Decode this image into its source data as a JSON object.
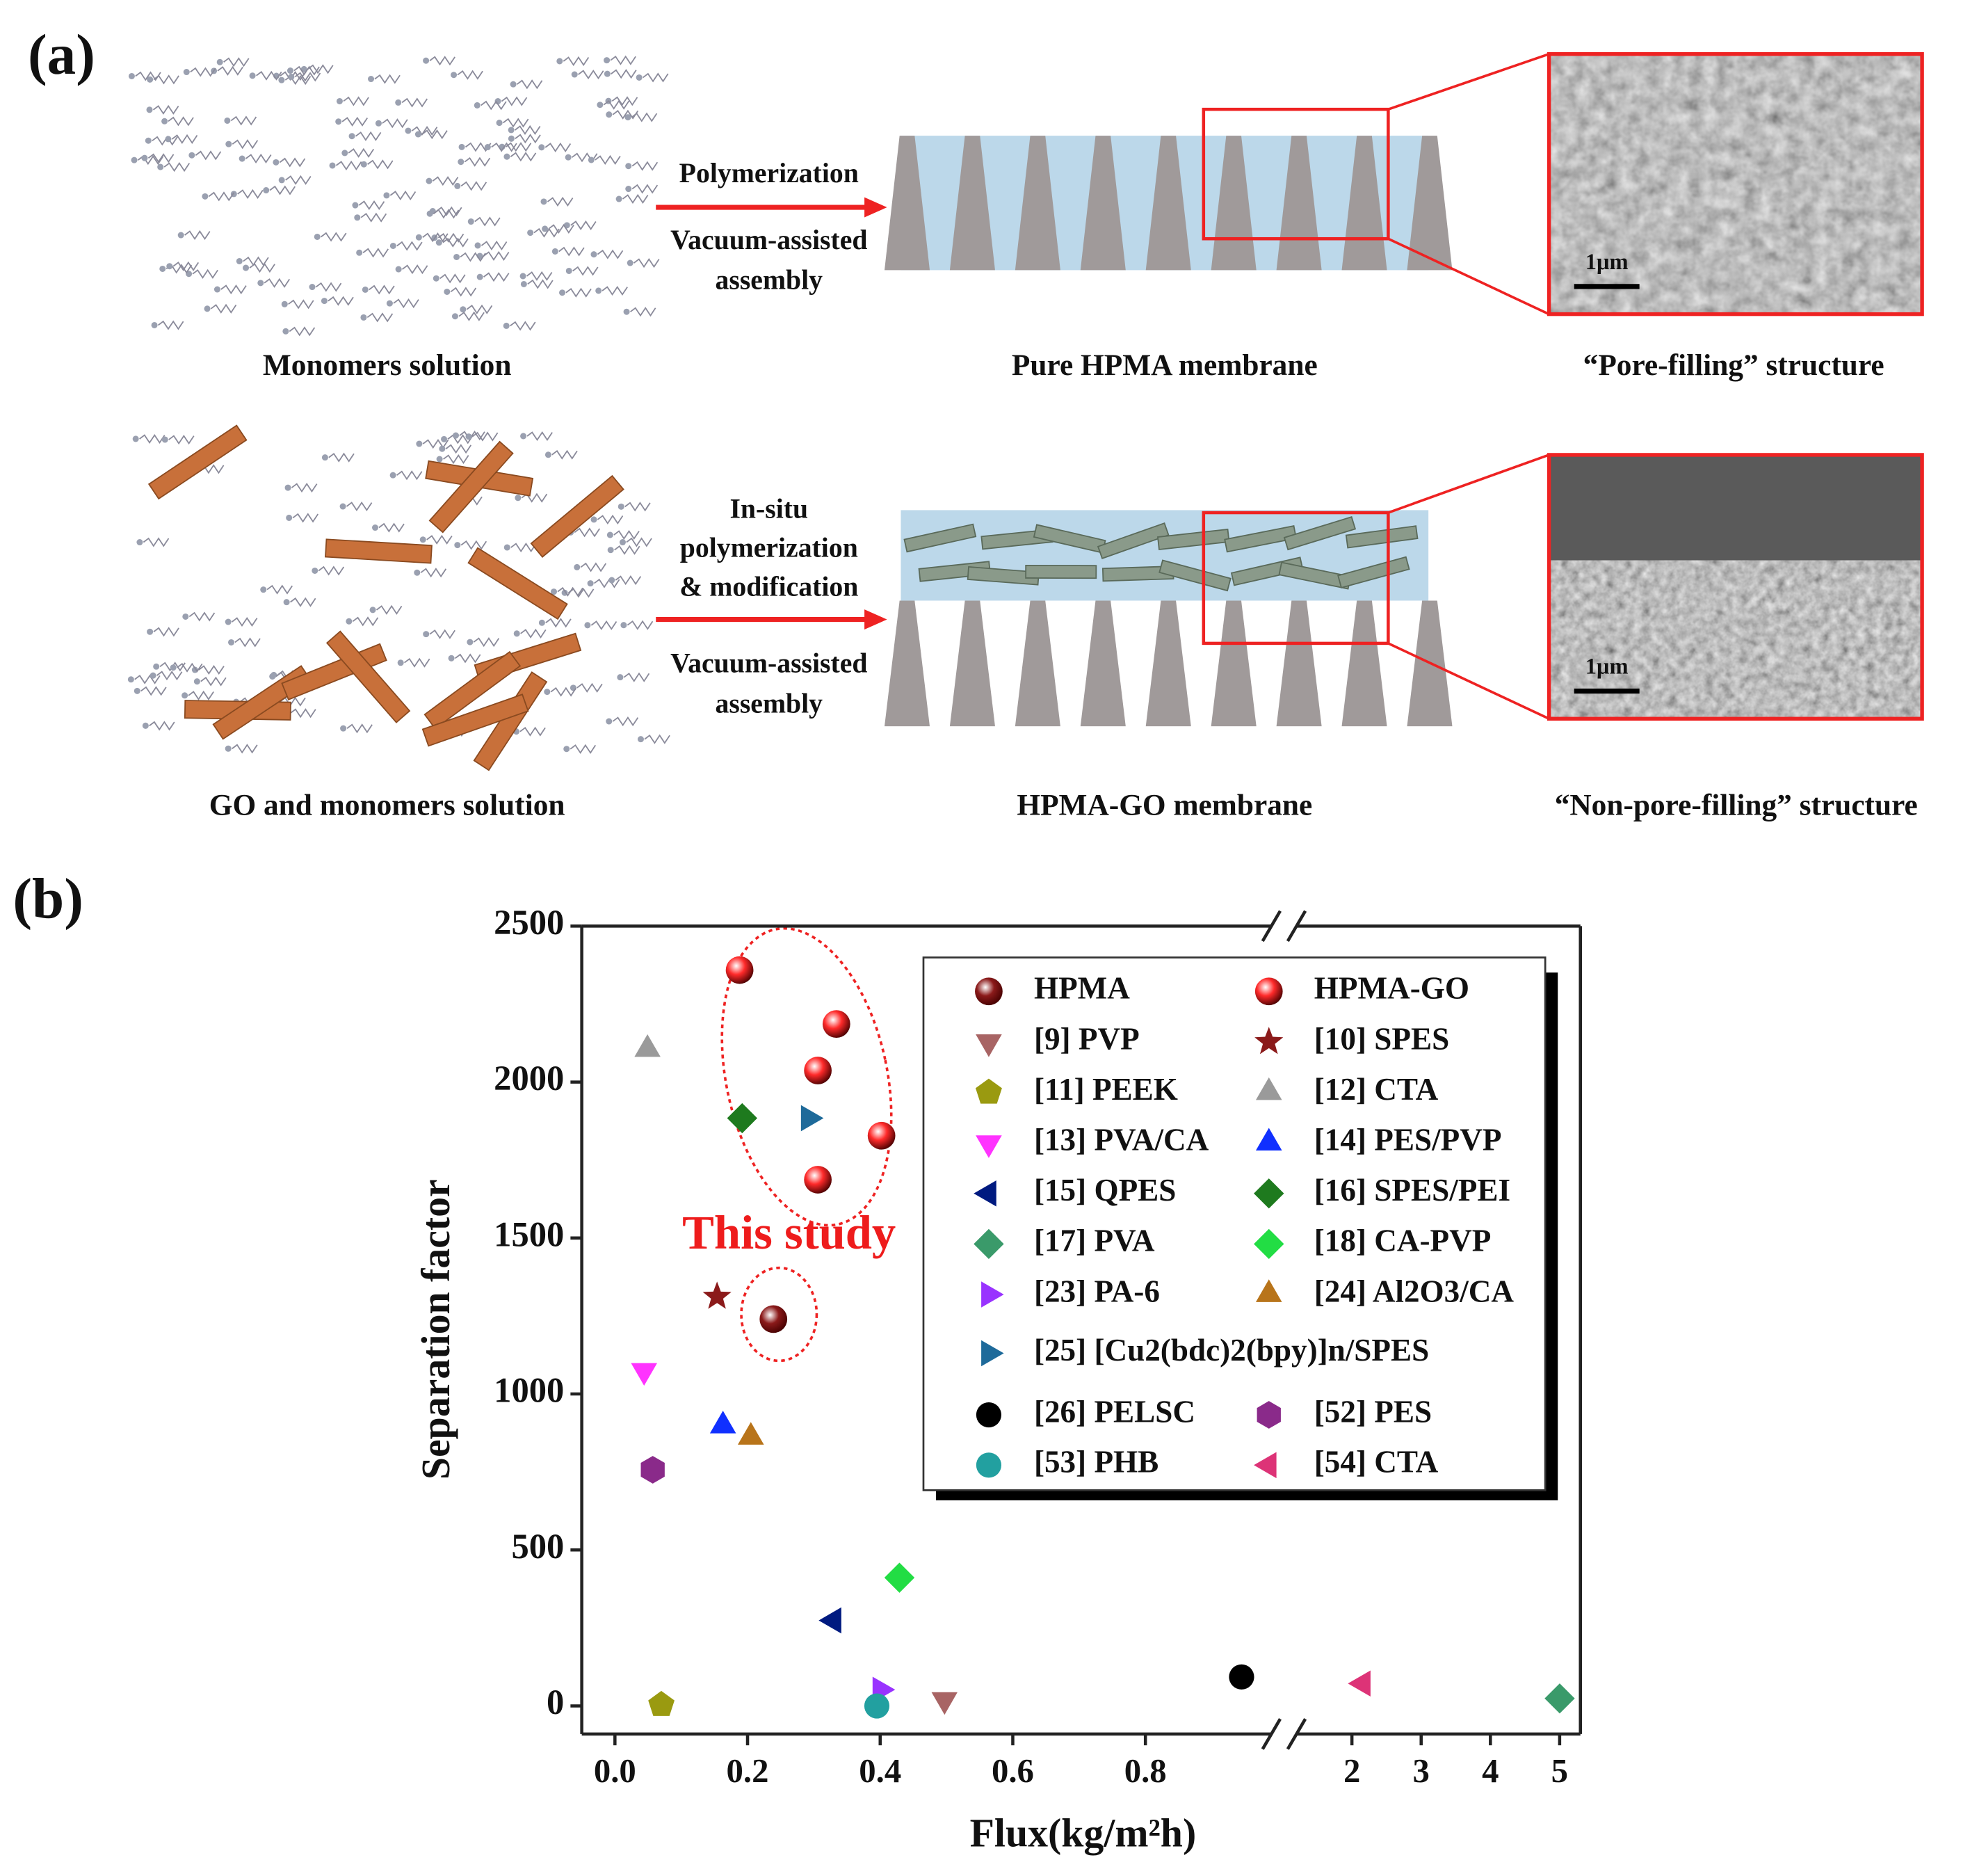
{
  "panel_a": {
    "label": "(a)",
    "rows": [
      {
        "solution": "Monomers solution",
        "arrow_above": [
          "Polymerization"
        ],
        "arrow_below": [
          "Vacuum-assisted",
          "assembly"
        ],
        "membrane": "Pure HPMA membrane",
        "structure": "“Pore-filling” structure",
        "scale_bar": "1μm"
      },
      {
        "solution": "GO and monomers solution",
        "arrow_above": [
          "In-situ",
          "polymerization",
          "& modification"
        ],
        "arrow_below": [
          "Vacuum-assisted",
          "assembly"
        ],
        "membrane": "HPMA-GO membrane",
        "structure": "“Non-pore-filling” structure",
        "scale_bar": "1μm"
      }
    ]
  },
  "chart_data": {
    "type": "scatter",
    "panel_label": "(b)",
    "xlabel": "Flux(kg/m²h)",
    "ylabel": "Separation factor",
    "annotation": "This study",
    "xlim": [
      -0.05,
      5.3
    ],
    "xbreak": [
      0.99,
      1.2
    ],
    "xticks": [
      {
        "value": 0,
        "label": "0.0"
      },
      0.2,
      0.4,
      0.6,
      0.8,
      2,
      3,
      4,
      5
    ],
    "ylim": [
      -90,
      2500
    ],
    "yticks": [
      0,
      500,
      1000,
      1500,
      2000,
      2500
    ],
    "series": [
      {
        "name": "HPMA",
        "color": "#8b1a1a",
        "marker": "sphere",
        "x": [
          0.239
        ],
        "values": [
          1240
        ]
      },
      {
        "name": "HPMA-GO",
        "color": "#ff2a2a",
        "marker": "sphere",
        "x": [
          0.188,
          0.334,
          0.306,
          0.402,
          0.306
        ],
        "values": [
          2359,
          2186,
          2037,
          1828,
          1687
        ]
      },
      {
        "name": "[9] PVP",
        "color": "#a86464",
        "marker": "tri-down",
        "x": [
          0.497
        ],
        "values": [
          20
        ]
      },
      {
        "name": "[10] SPES",
        "color": "#8b1a1a",
        "marker": "star",
        "x": [
          0.154
        ],
        "values": [
          1312
        ]
      },
      {
        "name": "[11] PEEK",
        "color": "#9a9a10",
        "marker": "pentagon",
        "x": [
          0.07
        ],
        "values": [
          4
        ]
      },
      {
        "name": "[12] CTA",
        "color": "#9a9a9a",
        "marker": "tri-up",
        "x": [
          0.049
        ],
        "values": [
          2105
        ]
      },
      {
        "name": "[13] PVA/CA",
        "color": "#ff33ff",
        "marker": "tri-down",
        "x": [
          0.044
        ],
        "values": [
          1075
        ]
      },
      {
        "name": "[14] PES/PVP",
        "color": "#1030ff",
        "marker": "tri-up",
        "x": [
          0.163
        ],
        "values": [
          898
        ]
      },
      {
        "name": "[15] QPES",
        "color": "#001a80",
        "marker": "tri-left",
        "x": [
          0.33
        ],
        "values": [
          274
        ]
      },
      {
        "name": "[16] SPES/PEI",
        "color": "#1e7a1e",
        "marker": "diamond",
        "x": [
          0.192
        ],
        "values": [
          1884
        ]
      },
      {
        "name": "[17] PVA",
        "color": "#3a9a6a",
        "marker": "diamond",
        "x": [
          5.0
        ],
        "values": [
          24
        ]
      },
      {
        "name": "[18] CA-PVP",
        "color": "#22dd44",
        "marker": "diamond",
        "x": [
          0.429
        ],
        "values": [
          411
        ]
      },
      {
        "name": "[23] PA-6",
        "color": "#9933ff",
        "marker": "tri-right",
        "x": [
          0.4
        ],
        "values": [
          52
        ]
      },
      {
        "name": "[24] Al2O3/CA",
        "color": "#b8741a",
        "marker": "tri-up",
        "x": [
          0.205
        ],
        "values": [
          862
        ]
      },
      {
        "name": "[25] [Cu2(bdc)2(bpy)]n/SPES",
        "color": "#1e6a9a",
        "marker": "tri-right",
        "x": [
          0.292
        ],
        "values": [
          1884
        ]
      },
      {
        "name": "[26] PELSC",
        "color": "#000000",
        "marker": "circle",
        "x": [
          0.945
        ],
        "values": [
          93
        ]
      },
      {
        "name": "[52] PES",
        "color": "#8a2a8a",
        "marker": "hexagon",
        "x": [
          0.057
        ],
        "values": [
          757
        ]
      },
      {
        "name": "[53] PHB",
        "color": "#22a0a0",
        "marker": "circle",
        "x": [
          0.395
        ],
        "values": [
          0
        ]
      },
      {
        "name": "[54] CTA",
        "color": "#dd3377",
        "marker": "tri-left",
        "x": [
          2.16
        ],
        "values": [
          72
        ]
      }
    ]
  }
}
